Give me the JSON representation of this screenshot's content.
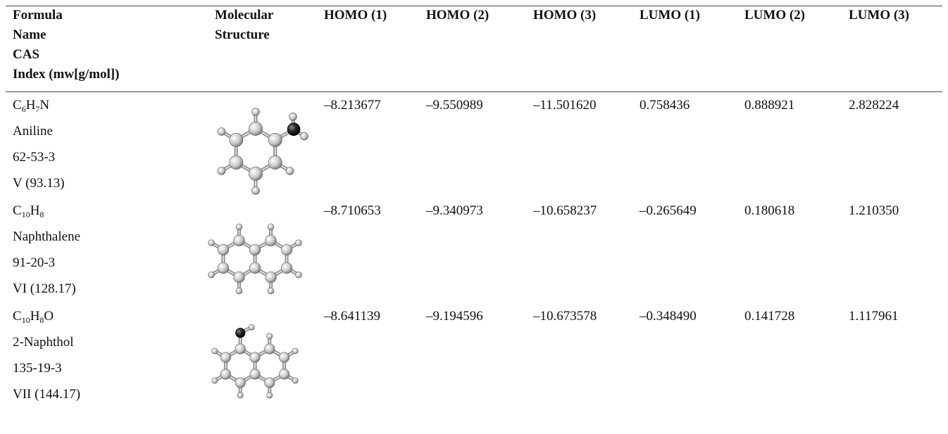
{
  "header": {
    "columns": [
      [
        "Formula",
        "Name",
        "CAS",
        "Index (mw[g/mol])"
      ],
      [
        "Molecular",
        "Structure"
      ],
      [
        "HOMO (1)"
      ],
      [
        "HOMO (2)"
      ],
      [
        "HOMO (3)"
      ],
      [
        "LUMO (1)"
      ],
      [
        "LUMO (2)"
      ],
      [
        "LUMO (3)"
      ]
    ]
  },
  "table": {
    "rows": [
      {
        "formula": [
          {
            "text": "C"
          },
          {
            "sub": "6"
          },
          {
            "text": "H"
          },
          {
            "sub": "7"
          },
          {
            "text": "N"
          }
        ],
        "name": "Aniline",
        "cas": "62-53-3",
        "index": "V (93.13)",
        "values": [
          "–8.213677",
          "–9.550989",
          "–11.501620",
          "0.758436",
          "0.888921",
          "2.828224"
        ]
      },
      {
        "formula": [
          {
            "text": "C"
          },
          {
            "sub": "10"
          },
          {
            "text": "H"
          },
          {
            "sub": "8"
          }
        ],
        "name": "Naphthalene",
        "cas": "91-20-3",
        "index": "VI (128.17)",
        "values": [
          "–8.710653",
          "–9.340973",
          "–10.658237",
          "–0.265649",
          "0.180618",
          "1.210350"
        ]
      },
      {
        "formula": [
          {
            "text": "C"
          },
          {
            "sub": "10"
          },
          {
            "text": "H"
          },
          {
            "sub": "8"
          },
          {
            "text": "O"
          }
        ],
        "name": "2-Naphthol",
        "cas": "135-19-3",
        "index": "VII (144.17)",
        "values": [
          "–8.641139",
          "–9.194596",
          "–10.673578",
          "–0.348490",
          "0.141728",
          "1.117961"
        ]
      }
    ]
  }
}
